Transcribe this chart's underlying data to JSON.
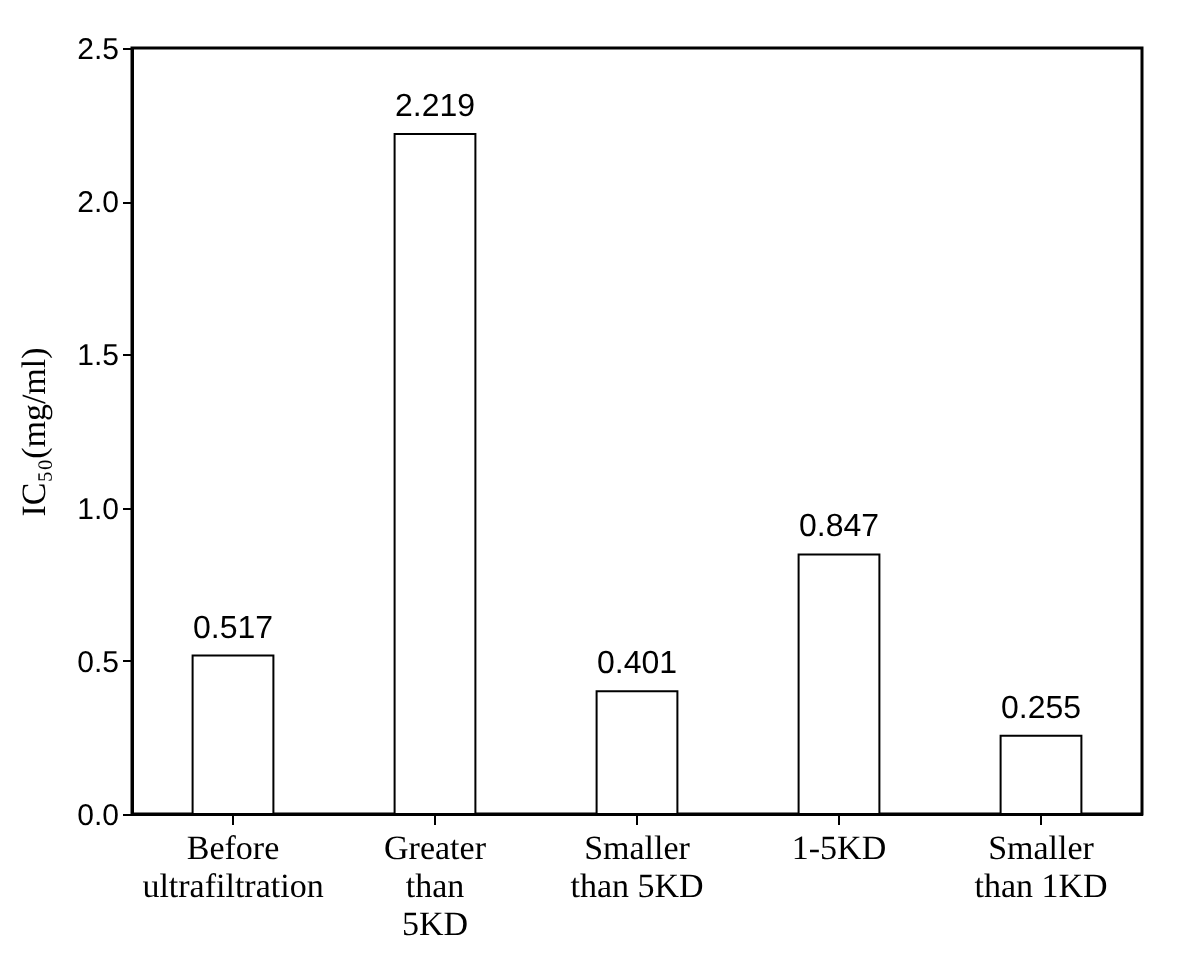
{
  "chart_data": {
    "type": "bar",
    "ylabel": "IC₅₀(mg/ml)",
    "categories": [
      "Before\nultrafiltration",
      "Greater\nthan\n5KD",
      "Smaller\nthan 5KD",
      "1-5KD",
      "Smaller\nthan 1KD"
    ],
    "values": [
      0.517,
      2.219,
      0.401,
      0.847,
      0.255
    ],
    "color": "#ffffff",
    "data_labels": true,
    "ylim": [
      0,
      2.5
    ],
    "yticks": [
      {
        "value": 0,
        "label": "0.0"
      },
      {
        "value": 0.5,
        "label": "0.5"
      },
      {
        "value": 1,
        "label": "1.0"
      },
      {
        "value": 1.5,
        "label": "1.5"
      },
      {
        "value": 2,
        "label": "2.0"
      },
      {
        "value": 2.5,
        "label": "2.5"
      }
    ]
  }
}
